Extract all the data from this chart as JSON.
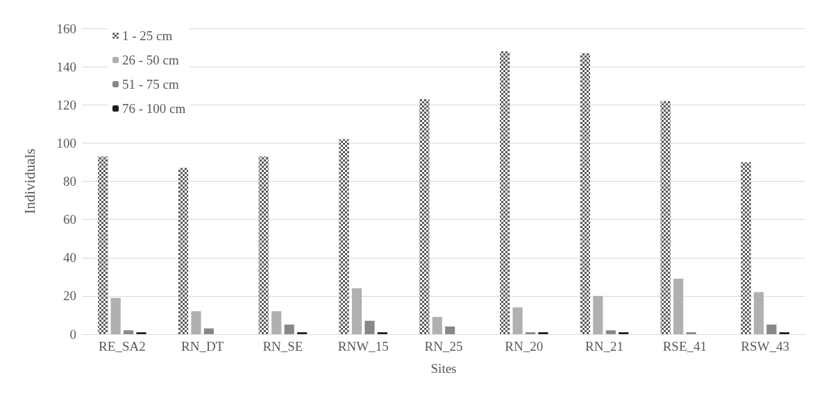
{
  "chart_data": {
    "type": "bar",
    "xlabel": "Sites",
    "ylabel": "Individuals",
    "categories": [
      "RE_SA2",
      "RN_DT",
      "RN_SE",
      "RNW_15",
      "RN_25",
      "RN_20",
      "RN_21",
      "RSE_41",
      "RSW_43"
    ],
    "series": [
      {
        "name": "1 - 25 cm",
        "color": "#5a5a5a",
        "values": [
          93,
          87,
          93,
          102,
          123,
          148,
          147,
          122,
          90
        ]
      },
      {
        "name": "26 - 50 cm",
        "color": "#b0b0b0",
        "values": [
          19,
          12,
          12,
          24,
          9,
          14,
          20,
          29,
          22
        ]
      },
      {
        "name": "51 - 75 cm",
        "color": "#878787",
        "values": [
          2,
          3,
          5,
          7,
          4,
          1,
          2,
          1,
          5
        ]
      },
      {
        "name": "76 - 100 cm",
        "color": "#1e1e1e",
        "values": [
          1,
          0,
          1,
          1,
          0,
          1,
          1,
          0,
          1
        ]
      }
    ],
    "ylim": [
      0,
      160
    ],
    "yticks": [
      0,
      20,
      40,
      60,
      80,
      100,
      120,
      140,
      160
    ],
    "grid": "y",
    "legend": "top left"
  }
}
